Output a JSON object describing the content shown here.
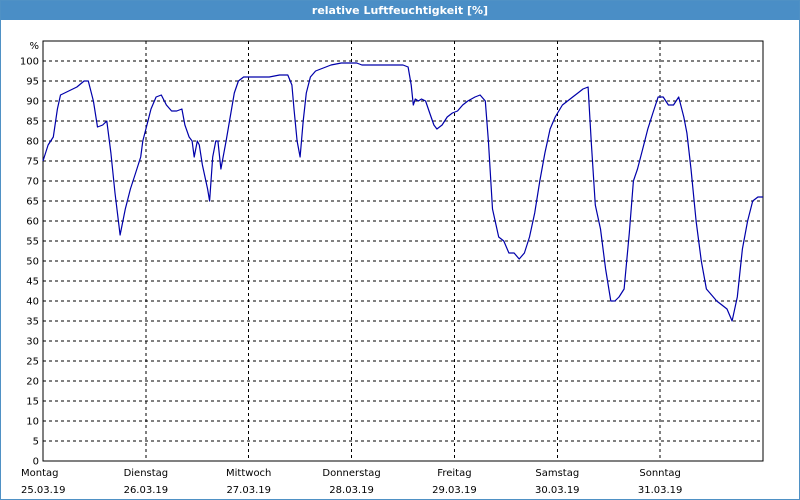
{
  "window": {
    "title": "relative Luftfeuchtigkeit [%]",
    "title_bar_color": "#4a8ec6"
  },
  "chart_data": {
    "type": "line",
    "ylabel": "%",
    "ylim": [
      0,
      105
    ],
    "yticks": [
      0,
      5,
      10,
      15,
      20,
      25,
      30,
      35,
      40,
      45,
      50,
      55,
      60,
      65,
      70,
      75,
      80,
      85,
      90,
      95,
      100
    ],
    "xlim": [
      0,
      7
    ],
    "xaxis_unit": "days from start of Montag 25.03.19",
    "xticks": [
      {
        "day": "Montag",
        "date": "25.03.19"
      },
      {
        "day": "Dienstag",
        "date": "26.03.19"
      },
      {
        "day": "Mittwoch",
        "date": "27.03.19"
      },
      {
        "day": "Donnerstag",
        "date": "28.03.19"
      },
      {
        "day": "Freitag",
        "date": "29.03.19"
      },
      {
        "day": "Samstag",
        "date": "30.03.19"
      },
      {
        "day": "Sonntag",
        "date": "31.03.19"
      }
    ],
    "grid": true,
    "line_color": "#0000aa",
    "series": [
      {
        "name": "",
        "points": [
          [
            0.0,
            75
          ],
          [
            0.05,
            79
          ],
          [
            0.1,
            81
          ],
          [
            0.14,
            88
          ],
          [
            0.17,
            91.5
          ],
          [
            0.25,
            92.5
          ],
          [
            0.33,
            93.5
          ],
          [
            0.4,
            95
          ],
          [
            0.44,
            95
          ],
          [
            0.49,
            90
          ],
          [
            0.53,
            83.5
          ],
          [
            0.58,
            84
          ],
          [
            0.62,
            85
          ],
          [
            0.66,
            77
          ],
          [
            0.7,
            67
          ],
          [
            0.75,
            56.5
          ],
          [
            0.8,
            63
          ],
          [
            0.85,
            68
          ],
          [
            0.9,
            72
          ],
          [
            0.95,
            76
          ],
          [
            0.97,
            80
          ],
          [
            1.0,
            83
          ],
          [
            1.05,
            88
          ],
          [
            1.1,
            91
          ],
          [
            1.15,
            91.5
          ],
          [
            1.2,
            89
          ],
          [
            1.25,
            87.5
          ],
          [
            1.3,
            87.5
          ],
          [
            1.35,
            88
          ],
          [
            1.38,
            84
          ],
          [
            1.42,
            81
          ],
          [
            1.45,
            80
          ],
          [
            1.47,
            76
          ],
          [
            1.5,
            80
          ],
          [
            1.52,
            79
          ],
          [
            1.55,
            74
          ],
          [
            1.6,
            68
          ],
          [
            1.62,
            65
          ],
          [
            1.65,
            76
          ],
          [
            1.68,
            80
          ],
          [
            1.7,
            80
          ],
          [
            1.73,
            73
          ],
          [
            1.78,
            80
          ],
          [
            1.82,
            86
          ],
          [
            1.86,
            92
          ],
          [
            1.9,
            95
          ],
          [
            1.95,
            96
          ],
          [
            2.0,
            96
          ],
          [
            2.1,
            96
          ],
          [
            2.2,
            96
          ],
          [
            2.3,
            96.5
          ],
          [
            2.38,
            96.5
          ],
          [
            2.42,
            94
          ],
          [
            2.44,
            88
          ],
          [
            2.47,
            80
          ],
          [
            2.5,
            76
          ],
          [
            2.53,
            85
          ],
          [
            2.56,
            92
          ],
          [
            2.6,
            96
          ],
          [
            2.65,
            97.5
          ],
          [
            2.7,
            98
          ],
          [
            2.75,
            98.5
          ],
          [
            2.8,
            99
          ],
          [
            2.9,
            99.5
          ],
          [
            3.0,
            99.5
          ],
          [
            3.05,
            99.5
          ],
          [
            3.1,
            99
          ],
          [
            3.2,
            99
          ],
          [
            3.3,
            99
          ],
          [
            3.4,
            99
          ],
          [
            3.5,
            99
          ],
          [
            3.55,
            98.5
          ],
          [
            3.58,
            94
          ],
          [
            3.6,
            89
          ],
          [
            3.62,
            90.5
          ],
          [
            3.65,
            90
          ],
          [
            3.68,
            90.5
          ],
          [
            3.72,
            90
          ],
          [
            3.76,
            87
          ],
          [
            3.8,
            84
          ],
          [
            3.83,
            83
          ],
          [
            3.88,
            84
          ],
          [
            3.93,
            86
          ],
          [
            3.98,
            87
          ],
          [
            4.03,
            87.5
          ],
          [
            4.08,
            89
          ],
          [
            4.13,
            90
          ],
          [
            4.2,
            91
          ],
          [
            4.25,
            91.5
          ],
          [
            4.3,
            90
          ],
          [
            4.33,
            80
          ],
          [
            4.37,
            63
          ],
          [
            4.43,
            56
          ],
          [
            4.48,
            55
          ],
          [
            4.53,
            52
          ],
          [
            4.58,
            52
          ],
          [
            4.63,
            50.5
          ],
          [
            4.68,
            52
          ],
          [
            4.73,
            56
          ],
          [
            4.78,
            62
          ],
          [
            4.83,
            70
          ],
          [
            4.88,
            77
          ],
          [
            4.93,
            83
          ],
          [
            4.98,
            86
          ],
          [
            5.05,
            89
          ],
          [
            5.1,
            90
          ],
          [
            5.15,
            91
          ],
          [
            5.2,
            92
          ],
          [
            5.25,
            93
          ],
          [
            5.3,
            93.5
          ],
          [
            5.33,
            80
          ],
          [
            5.37,
            64
          ],
          [
            5.42,
            58
          ],
          [
            5.47,
            48
          ],
          [
            5.52,
            40
          ],
          [
            5.56,
            40
          ],
          [
            5.6,
            41
          ],
          [
            5.65,
            43
          ],
          [
            5.7,
            57
          ],
          [
            5.74,
            70
          ],
          [
            5.78,
            73
          ],
          [
            5.83,
            78
          ],
          [
            5.88,
            83
          ],
          [
            5.93,
            87
          ],
          [
            5.98,
            91
          ],
          [
            6.03,
            91
          ],
          [
            6.08,
            89
          ],
          [
            6.13,
            89
          ],
          [
            6.18,
            91
          ],
          [
            6.23,
            86
          ],
          [
            6.26,
            82
          ],
          [
            6.3,
            73
          ],
          [
            6.35,
            60
          ],
          [
            6.4,
            50
          ],
          [
            6.45,
            43
          ],
          [
            6.5,
            41.5
          ],
          [
            6.55,
            40
          ],
          [
            6.6,
            39
          ],
          [
            6.65,
            38
          ],
          [
            6.7,
            35
          ],
          [
            6.75,
            41
          ],
          [
            6.8,
            53
          ],
          [
            6.85,
            60
          ],
          [
            6.9,
            65
          ],
          [
            6.95,
            66
          ],
          [
            7.0,
            66
          ]
        ]
      }
    ]
  }
}
